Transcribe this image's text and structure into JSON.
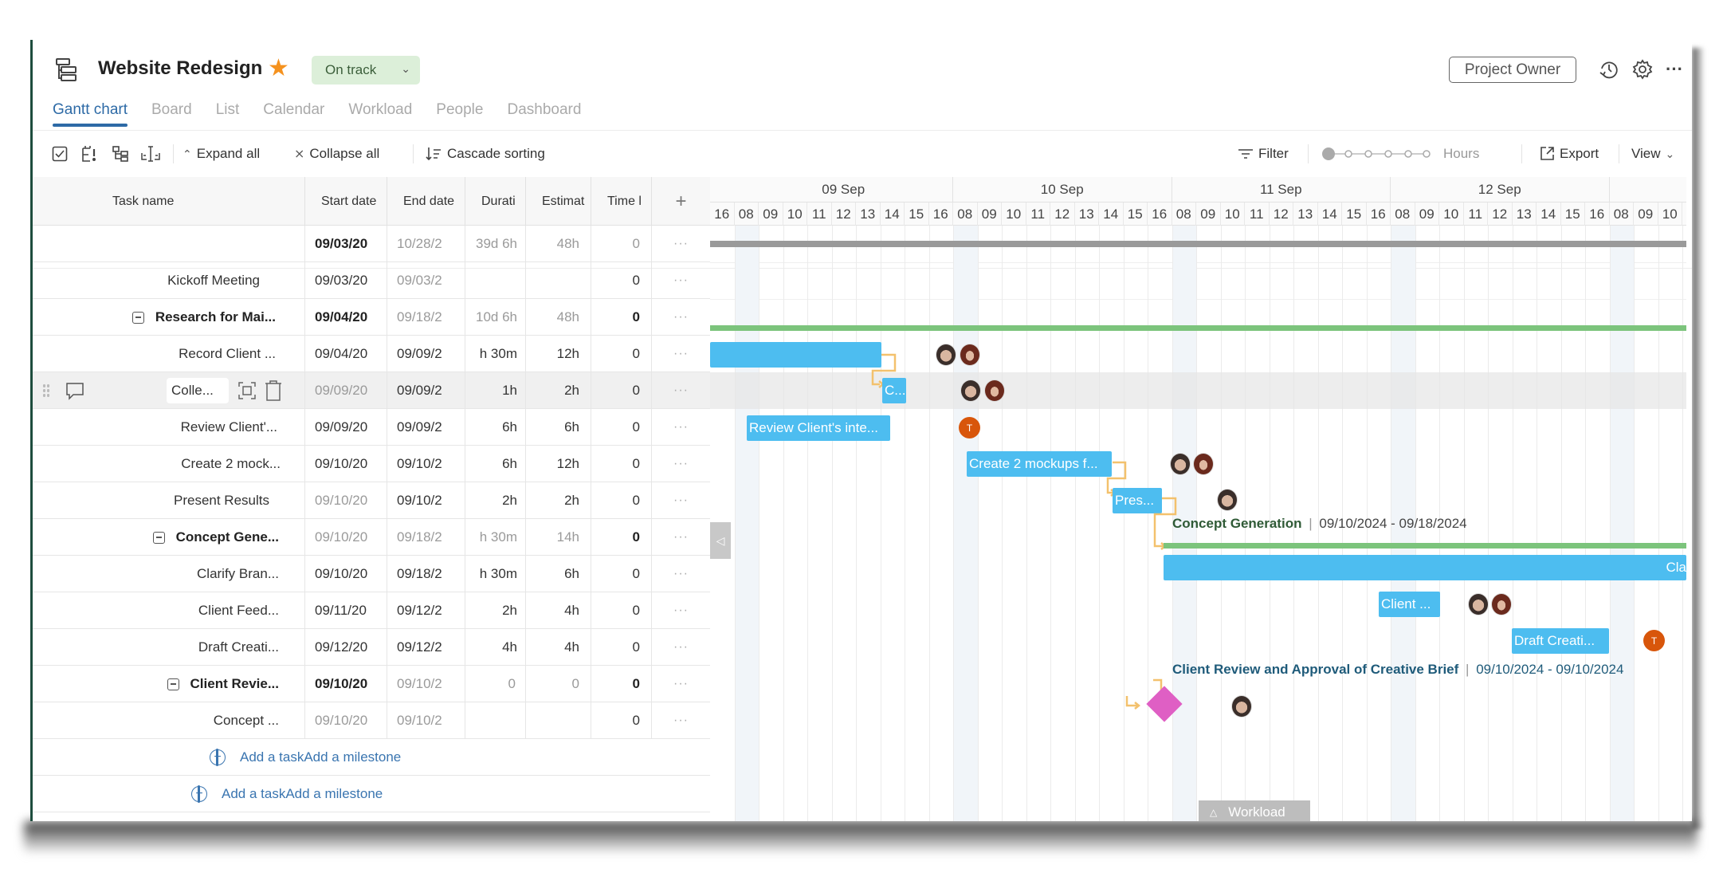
{
  "header": {
    "title": "Website Redesign",
    "status": "On track",
    "project_owner_label": "Project Owner",
    "icons": [
      "gantt-project-icon",
      "star-icon",
      "chevron-down-icon",
      "history-icon",
      "gear-icon",
      "more-icon"
    ],
    "colors": {
      "star": "#f5921e",
      "status_bg": "#dcefd9",
      "accent": "#2d6aa6"
    }
  },
  "tabs": [
    {
      "label": "Gantt chart",
      "active": true
    },
    {
      "label": "Board"
    },
    {
      "label": "List"
    },
    {
      "label": "Calendar"
    },
    {
      "label": "Workload"
    },
    {
      "label": "People"
    },
    {
      "label": "Dashboard"
    }
  ],
  "toolbar": {
    "expand_all": "Expand all",
    "collapse_all": "Collapse all",
    "cascade_sorting": "Cascade sorting",
    "filter": "Filter",
    "zoom_level": "Hours",
    "export": "Export",
    "view": "View"
  },
  "table": {
    "columns": [
      "Task name",
      "Start date",
      "End date",
      "Durati",
      "Estimat",
      "Time l"
    ],
    "add_column": "+",
    "rows": [
      {
        "name": "",
        "start": "09/03/20",
        "end": "10/28/2",
        "duration": "39d 6h",
        "estimate": "48h",
        "timelog": "0"
      },
      {
        "name": "Kickoff Meeting",
        "start": "09/03/20",
        "end": "09/03/2",
        "duration": "",
        "estimate": "",
        "timelog": "0"
      },
      {
        "name": "Research for Mai...",
        "start": "09/04/20",
        "end": "09/18/2",
        "duration": "10d 6h",
        "estimate": "48h",
        "timelog": "0",
        "group": true
      },
      {
        "name": "Record Client ...",
        "start": "09/04/20",
        "end": "09/09/2",
        "duration": "h 30m",
        "estimate": "12h",
        "timelog": "0"
      },
      {
        "name": "Colle...",
        "start": "09/09/20",
        "end": "09/09/2",
        "duration": "1h",
        "estimate": "2h",
        "timelog": "0",
        "hover": true
      },
      {
        "name": "Review Client'...",
        "start": "09/09/20",
        "end": "09/09/2",
        "duration": "6h",
        "estimate": "6h",
        "timelog": "0"
      },
      {
        "name": "Create 2 mock...",
        "start": "09/10/20",
        "end": "09/10/2",
        "duration": "6h",
        "estimate": "12h",
        "timelog": "0"
      },
      {
        "name": "Present Results",
        "start": "09/10/20",
        "end": "09/10/2",
        "duration": "2h",
        "estimate": "2h",
        "timelog": "0"
      },
      {
        "name": "Concept Gene...",
        "start": "09/10/20",
        "end": "09/18/2",
        "duration": "h 30m",
        "estimate": "14h",
        "timelog": "0",
        "group": true
      },
      {
        "name": "Clarify Bran...",
        "start": "09/10/20",
        "end": "09/18/2",
        "duration": "h 30m",
        "estimate": "6h",
        "timelog": "0"
      },
      {
        "name": "Client Feed...",
        "start": "09/11/20",
        "end": "09/12/2",
        "duration": "2h",
        "estimate": "4h",
        "timelog": "0"
      },
      {
        "name": "Draft Creati...",
        "start": "09/12/20",
        "end": "09/12/2",
        "duration": "4h",
        "estimate": "4h",
        "timelog": "0"
      },
      {
        "name": "Client Revie...",
        "start": "09/10/20",
        "end": "09/10/2",
        "duration": "0",
        "estimate": "0",
        "timelog": "0",
        "group": true
      },
      {
        "name": "Concept ...",
        "start": "09/10/20",
        "end": "09/10/2",
        "duration": "",
        "estimate": "",
        "timelog": "0"
      }
    ],
    "row_menu": "···",
    "add_task": "Add a task",
    "add_milestone": "Add a milestone"
  },
  "gantt": {
    "days": [
      "09 Sep",
      "10 Sep",
      "11 Sep",
      "12 Sep"
    ],
    "hours_first": "16",
    "hours": [
      "08",
      "09",
      "10",
      "11",
      "12",
      "13",
      "14",
      "15",
      "16"
    ],
    "hours_tail": [
      "08",
      "09",
      "10",
      "1"
    ],
    "bars": {
      "review_client": "Review Client's inte...",
      "collect": "C...",
      "create_mockups": "Create 2 mockups f...",
      "present": "Pres...",
      "clarify": "Cla",
      "client_feedback": "Client ...",
      "draft_creative": "Draft Creati..."
    },
    "groups": {
      "concept": {
        "name": "Concept Generation",
        "dates": "09/10/2024 - 09/18/2024"
      },
      "client_review": {
        "name": "Client Review and Approval of Creative Brief",
        "dates": "09/10/2024 - 09/10/2024"
      }
    },
    "avatar_initial": "T",
    "workload_label": "Workload",
    "colors": {
      "task_bar": "#4dbdf0",
      "summary_bar": "#9a9a9a",
      "group_bar": "#7cc47c",
      "milestone": "#df5fc4",
      "dependency": "#f3c16d",
      "group_label_green": "#2f5a36",
      "group_label_blue": "#1f5b7a"
    }
  }
}
